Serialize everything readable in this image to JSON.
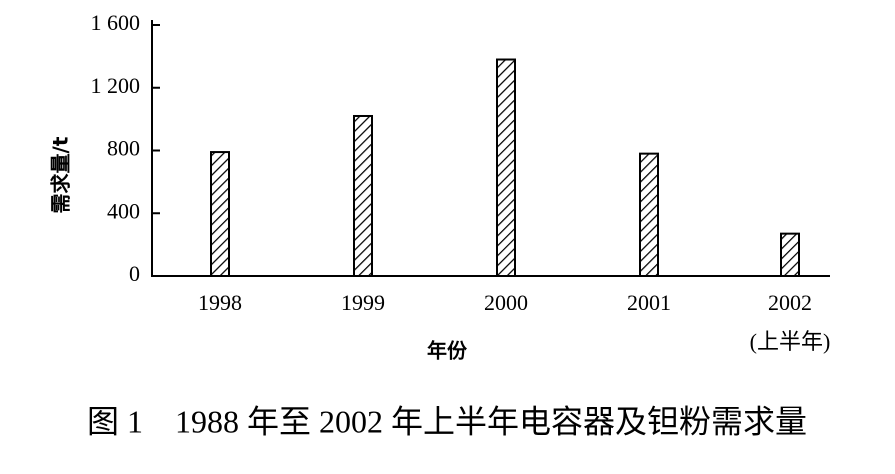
{
  "chart_data": {
    "type": "bar",
    "caption": "图 1　1988 年至 2002 年上半年电容器及钽粉需求量",
    "y_label": "需求量/t",
    "x_label": "年份",
    "categories": [
      "1998",
      "1999",
      "2000",
      "2001",
      "2002"
    ],
    "category_note": "(上半年)",
    "values": [
      790,
      1020,
      1380,
      780,
      270
    ],
    "color": "#000000",
    "ylim": [
      0,
      1600
    ],
    "yticks": [
      0,
      400,
      800,
      {
        "value": 1200,
        "label": "1 200"
      },
      {
        "value": 1600,
        "label": "1 600"
      }
    ],
    "grid": false
  }
}
